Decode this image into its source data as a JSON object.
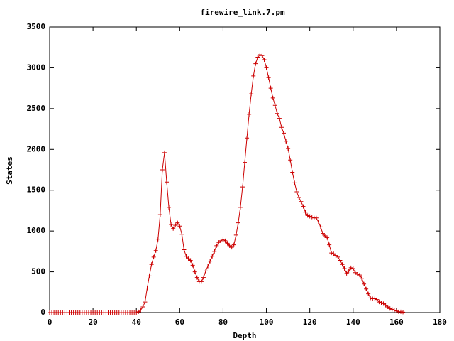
{
  "chart_data": {
    "type": "line",
    "title": "firewire_link.7.pm",
    "xlabel": "Depth",
    "ylabel": "States",
    "x": [
      0,
      1,
      2,
      3,
      4,
      5,
      6,
      7,
      8,
      9,
      10,
      11,
      12,
      13,
      14,
      15,
      16,
      17,
      18,
      19,
      20,
      21,
      22,
      23,
      24,
      25,
      26,
      27,
      28,
      29,
      30,
      31,
      32,
      33,
      34,
      35,
      36,
      37,
      38,
      39,
      40,
      41,
      42,
      43,
      44,
      45,
      46,
      47,
      48,
      49,
      50,
      51,
      52,
      53,
      54,
      55,
      56,
      57,
      58,
      59,
      60,
      61,
      62,
      63,
      64,
      65,
      66,
      67,
      68,
      69,
      70,
      71,
      72,
      73,
      74,
      75,
      76,
      77,
      78,
      79,
      80,
      81,
      82,
      83,
      84,
      85,
      86,
      87,
      88,
      89,
      90,
      91,
      92,
      93,
      94,
      95,
      96,
      97,
      98,
      99,
      100,
      101,
      102,
      103,
      104,
      105,
      106,
      107,
      108,
      109,
      110,
      111,
      112,
      113,
      114,
      115,
      116,
      117,
      118,
      119,
      120,
      121,
      122,
      123,
      124,
      125,
      126,
      127,
      128,
      129,
      130,
      131,
      132,
      133,
      134,
      135,
      136,
      137,
      138,
      139,
      140,
      141,
      142,
      143,
      144,
      145,
      146,
      147,
      148,
      149,
      150,
      151,
      152,
      153,
      154,
      155,
      156,
      157,
      158,
      159,
      160,
      161,
      162,
      163
    ],
    "series": [
      {
        "color": "#cc0000",
        "values": [
          0,
          0,
          0,
          0,
          0,
          0,
          0,
          0,
          0,
          0,
          0,
          0,
          0,
          0,
          0,
          0,
          0,
          0,
          0,
          0,
          0,
          0,
          0,
          0,
          0,
          0,
          0,
          0,
          0,
          0,
          0,
          0,
          0,
          0,
          0,
          0,
          0,
          0,
          0,
          0,
          0,
          10,
          30,
          70,
          130,
          300,
          450,
          590,
          680,
          760,
          900,
          1200,
          1750,
          1960,
          1600,
          1290,
          1080,
          1030,
          1070,
          1100,
          1060,
          960,
          770,
          690,
          660,
          640,
          580,
          500,
          430,
          380,
          380,
          430,
          510,
          570,
          630,
          690,
          750,
          820,
          860,
          880,
          900,
          880,
          850,
          820,
          800,
          830,
          950,
          1100,
          1290,
          1540,
          1840,
          2140,
          2430,
          2680,
          2900,
          3050,
          3130,
          3160,
          3150,
          3100,
          3000,
          2880,
          2750,
          2630,
          2540,
          2440,
          2380,
          2270,
          2200,
          2100,
          2010,
          1870,
          1720,
          1590,
          1480,
          1410,
          1360,
          1300,
          1230,
          1190,
          1180,
          1170,
          1160,
          1160,
          1110,
          1050,
          970,
          940,
          920,
          830,
          730,
          720,
          700,
          680,
          640,
          590,
          540,
          480,
          510,
          550,
          540,
          490,
          470,
          460,
          420,
          350,
          290,
          230,
          180,
          170,
          170,
          160,
          130,
          120,
          110,
          90,
          70,
          50,
          40,
          30,
          20,
          10,
          10,
          5
        ]
      }
    ],
    "xlim": [
      0,
      180
    ],
    "xticks": [
      0,
      20,
      40,
      60,
      80,
      100,
      120,
      140,
      160,
      180
    ],
    "ylim": [
      0,
      3500
    ],
    "yticks": [
      0,
      500,
      1000,
      1500,
      2000,
      2500,
      3000,
      3500
    ]
  }
}
